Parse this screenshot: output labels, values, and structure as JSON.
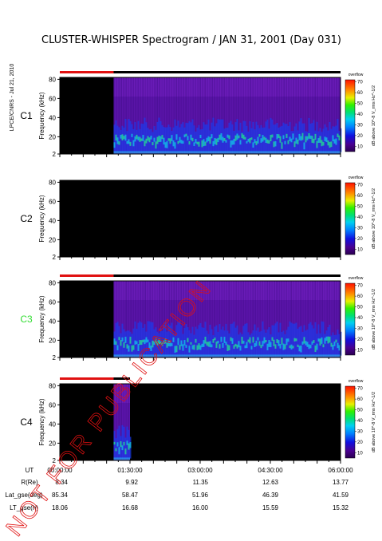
{
  "chart_data": {
    "type": "heatmap",
    "title": "CLUSTER-WHISPER Spectrogram / JAN 31, 2001 (Day 031)",
    "side_label": "LPCE/CNRS - Jul 21, 2010",
    "watermark": "NOT FOR PUBLICATION",
    "ylabel": "Frequency (kHz)",
    "yticks": [
      2,
      20,
      40,
      60,
      80
    ],
    "ylim": [
      2,
      82
    ],
    "xlim_hours": [
      0,
      6
    ],
    "colorbar": {
      "top_label": "overflow",
      "ticks": [
        10,
        20,
        30,
        40,
        50,
        60,
        70
      ],
      "label": "dB above 10^-8 V_rms Hz^-1/2",
      "range": [
        5,
        72
      ]
    },
    "panels": [
      {
        "name": "C1",
        "name_color": "#000000",
        "data_start_hour": 1.15,
        "data_end_hour": 6.0,
        "status": "data",
        "red_bar_hours": [
          0,
          1.15
        ],
        "black_bar_hours": [
          1.15,
          6.0
        ]
      },
      {
        "name": "C2",
        "name_color": "#000000",
        "data_start_hour": null,
        "data_end_hour": null,
        "status": "no-data",
        "red_bar_hours": null,
        "black_bar_hours": null
      },
      {
        "name": "C3",
        "name_color": "#33dd33",
        "data_start_hour": 1.15,
        "data_end_hour": 6.0,
        "status": "data",
        "red_bar_hours": [
          0,
          1.15
        ],
        "black_bar_hours": [
          1.15,
          6.0
        ]
      },
      {
        "name": "C4",
        "name_color": "#000000",
        "data_start_hour": 1.15,
        "data_end_hour": 1.5,
        "status": "data",
        "red_bar_hours": [
          0,
          1.15
        ],
        "black_bar_hours": [
          1.15,
          1.5
        ]
      }
    ],
    "time_axis": {
      "row_labels": [
        "UT",
        "R(Re)",
        "Lat_gse(deg)",
        "LT_gse(h)"
      ],
      "columns": [
        {
          "UT": "00:00:00",
          "R": "8.34",
          "Lat": "85.34",
          "LT": "18.06"
        },
        {
          "UT": "01:30:00",
          "R": "9.92",
          "Lat": "58.47",
          "LT": "16.68"
        },
        {
          "UT": "03:00:00",
          "R": "11.35",
          "Lat": "51.96",
          "LT": "16.00"
        },
        {
          "UT": "04:30:00",
          "R": "12.63",
          "Lat": "46.39",
          "LT": "15.59"
        },
        {
          "UT": "06:00:00",
          "R": "13.77",
          "Lat": "41.59",
          "LT": "15.32"
        }
      ]
    }
  }
}
